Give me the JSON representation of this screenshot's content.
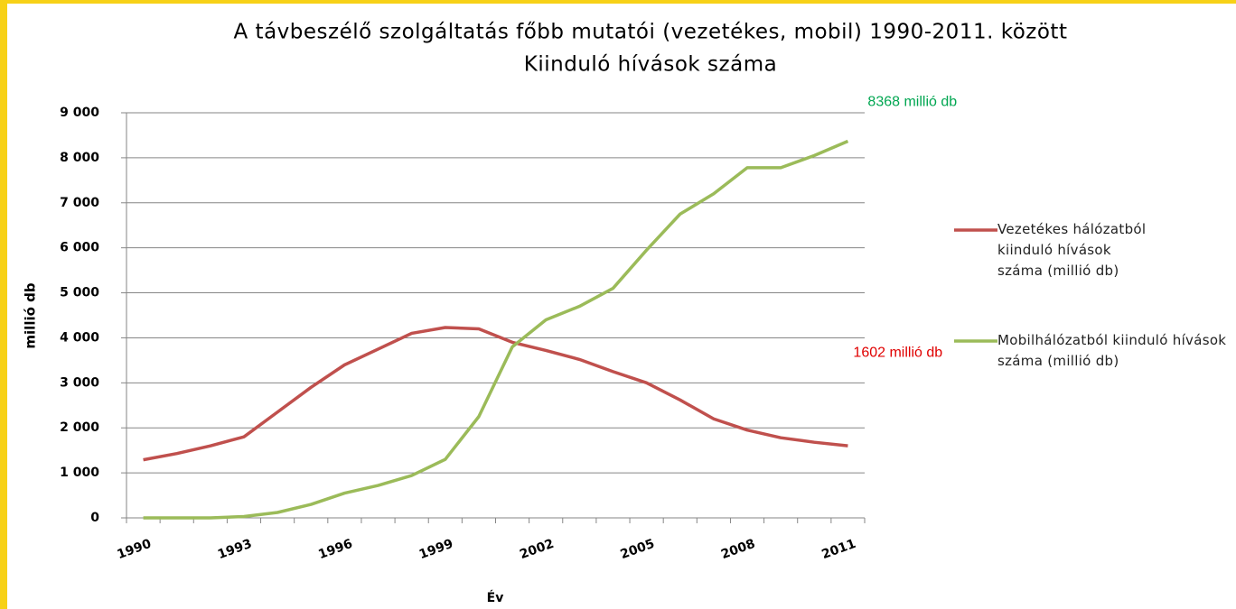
{
  "chart_data": {
    "type": "line",
    "title": "A távbeszélő szolgáltatás főbb mutatói (vezetékes, mobil) 1990-2011. között",
    "subtitle": "Kiinduló hívások száma",
    "x_label": "Év",
    "y_label": "millió db",
    "categories": [
      "1990",
      null,
      null,
      "1993",
      null,
      null,
      "1996",
      null,
      null,
      "1999",
      null,
      null,
      "2002",
      null,
      null,
      "2005",
      null,
      null,
      "2008",
      null,
      null,
      "2011"
    ],
    "series": [
      {
        "name": "Vezetékes hálózatból kiinduló hívások száma (millió db)",
        "color": "#c0504d",
        "values": [
          1290,
          1430,
          1600,
          1800,
          2350,
          2900,
          3400,
          3750,
          4100,
          4230,
          4200,
          3900,
          3720,
          3520,
          3250,
          3000,
          2620,
          2200,
          1950,
          1780,
          1680,
          1602
        ]
      },
      {
        "name": "Mobilhálózatból kiinduló hívások száma (millió db)",
        "color": "#9bbb59",
        "values": [
          0,
          0,
          0,
          30,
          120,
          300,
          550,
          720,
          940,
          1300,
          2250,
          3800,
          4400,
          4700,
          5100,
          5950,
          6750,
          7200,
          7780,
          7780,
          8050,
          8368
        ]
      }
    ],
    "annotations": [
      {
        "text": "8368 millió db",
        "series": 1,
        "color": "#00a651"
      },
      {
        "text": "1602 millió db",
        "series": 0,
        "color": "#e00000"
      }
    ],
    "ylim": [
      0,
      9000
    ],
    "yticks": [
      {
        "value": 0,
        "label": "0"
      },
      {
        "value": 1000,
        "label": "1 000"
      },
      {
        "value": 2000,
        "label": "2 000"
      },
      {
        "value": 3000,
        "label": "3 000"
      },
      {
        "value": 4000,
        "label": "4 000"
      },
      {
        "value": 5000,
        "label": "5 000"
      },
      {
        "value": 6000,
        "label": "6 000"
      },
      {
        "value": 7000,
        "label": "7 000"
      },
      {
        "value": 8000,
        "label": "8 000"
      },
      {
        "value": 9000,
        "label": "9 000"
      }
    ],
    "grid": true,
    "legend": "right"
  }
}
